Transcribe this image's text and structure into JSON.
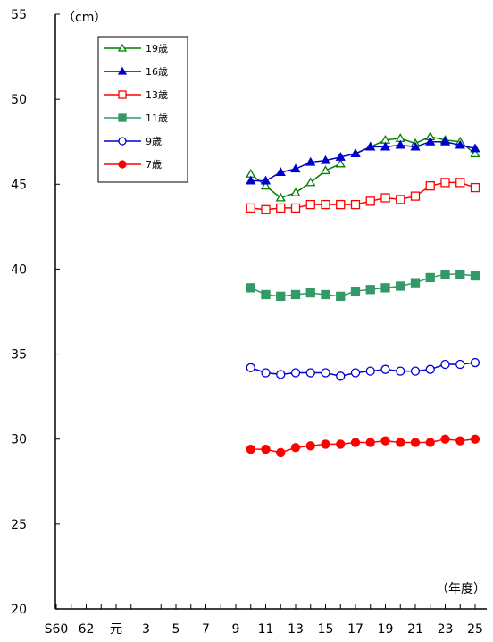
{
  "chart_data": {
    "type": "line",
    "y_unit_label": "（cm）",
    "x_unit_label": "（年度）",
    "ylim": [
      20,
      55
    ],
    "y_ticks": [
      "20",
      "25",
      "30",
      "35",
      "40",
      "45",
      "50",
      "55"
    ],
    "x_tick_labels": [
      "S60",
      "62",
      "元",
      "3",
      "5",
      "7",
      "9",
      "11",
      "13",
      "15",
      "17",
      "19",
      "21",
      "23",
      "25"
    ],
    "x_categories": [
      "S60",
      "S61",
      "S62",
      "S63",
      "元",
      "2",
      "3",
      "4",
      "5",
      "6",
      "7",
      "8",
      "9",
      "10",
      "11",
      "12",
      "13",
      "14",
      "15",
      "16",
      "17",
      "18",
      "19",
      "20",
      "21",
      "22",
      "23",
      "24",
      "25"
    ],
    "grid": false,
    "legend_position": "top-left",
    "series": [
      {
        "name": "19歳",
        "color": "#008000",
        "marker": "triangle-open",
        "x": [
          "10",
          "11",
          "12",
          "13",
          "14",
          "15",
          "16"
        ],
        "values": [
          45.6,
          44.9,
          44.2,
          44.5,
          45.1,
          45.8,
          46.2
        ]
      },
      {
        "name": "19歳",
        "color": "#008000",
        "marker": "triangle-open",
        "x": [
          "17",
          "18",
          "19",
          "20",
          "21",
          "22",
          "23",
          "24",
          "25"
        ],
        "values": [
          46.8,
          47.2,
          47.6,
          47.7,
          47.4,
          47.8,
          47.6,
          47.5,
          46.8
        ]
      },
      {
        "name": "16歳",
        "color": "#0000cc",
        "marker": "triangle-filled",
        "x": [
          "10",
          "11",
          "12",
          "13",
          "14",
          "15",
          "16",
          "17",
          "18",
          "19",
          "20",
          "21",
          "22",
          "23",
          "24",
          "25"
        ],
        "values": [
          45.2,
          45.2,
          45.7,
          45.9,
          46.3,
          46.4,
          46.6,
          46.8,
          47.2,
          47.2,
          47.3,
          47.2,
          47.5,
          47.5,
          47.3,
          47.1
        ]
      },
      {
        "name": "13歳",
        "color": "#ff0000",
        "marker": "square-open",
        "x": [
          "10",
          "11",
          "12",
          "13",
          "14",
          "15",
          "16",
          "17",
          "18",
          "19",
          "20",
          "21",
          "22",
          "23",
          "24",
          "25"
        ],
        "values": [
          43.6,
          43.5,
          43.6,
          43.6,
          43.8,
          43.8,
          43.8,
          43.8,
          44.0,
          44.2,
          44.1,
          44.3,
          44.9,
          45.1,
          45.1,
          44.8
        ]
      },
      {
        "name": "11歳",
        "color": "#339966",
        "marker": "square-filled",
        "x": [
          "10",
          "11",
          "12",
          "13",
          "14",
          "15",
          "16",
          "17",
          "18",
          "19",
          "20",
          "21",
          "22",
          "23",
          "24",
          "25"
        ],
        "values": [
          38.9,
          38.5,
          38.4,
          38.5,
          38.6,
          38.5,
          38.4,
          38.7,
          38.8,
          38.9,
          39.0,
          39.2,
          39.5,
          39.7,
          39.7,
          39.6
        ]
      },
      {
        "name": "9歳",
        "color": "#0000cc",
        "marker": "circle-open",
        "x": [
          "10",
          "11",
          "12",
          "13",
          "14",
          "15",
          "16",
          "17",
          "18",
          "19",
          "20",
          "21",
          "22",
          "23",
          "24",
          "25"
        ],
        "values": [
          34.2,
          33.9,
          33.8,
          33.9,
          33.9,
          33.9,
          33.7,
          33.9,
          34.0,
          34.1,
          34.0,
          34.0,
          34.1,
          34.4,
          34.4,
          34.5
        ]
      },
      {
        "name": "7歳",
        "color": "#ff0000",
        "marker": "circle-filled",
        "x": [
          "10",
          "11",
          "12",
          "13",
          "14",
          "15",
          "16",
          "17",
          "18",
          "19",
          "20",
          "21",
          "22",
          "23",
          "24",
          "25"
        ],
        "values": [
          29.4,
          29.4,
          29.2,
          29.5,
          29.6,
          29.7,
          29.7,
          29.8,
          29.8,
          29.9,
          29.8,
          29.8,
          29.8,
          30.0,
          29.9,
          30.0
        ]
      }
    ],
    "legend": [
      {
        "label": "19歳",
        "color": "#008000",
        "marker": "triangle-open"
      },
      {
        "label": "16歳",
        "color": "#0000cc",
        "marker": "triangle-filled"
      },
      {
        "label": "13歳",
        "color": "#ff0000",
        "marker": "square-open"
      },
      {
        "label": "11歳",
        "color": "#339966",
        "marker": "square-filled"
      },
      {
        "label": "9歳",
        "color": "#0000cc",
        "marker": "circle-open"
      },
      {
        "label": "7歳",
        "color": "#ff0000",
        "marker": "circle-filled"
      }
    ]
  }
}
